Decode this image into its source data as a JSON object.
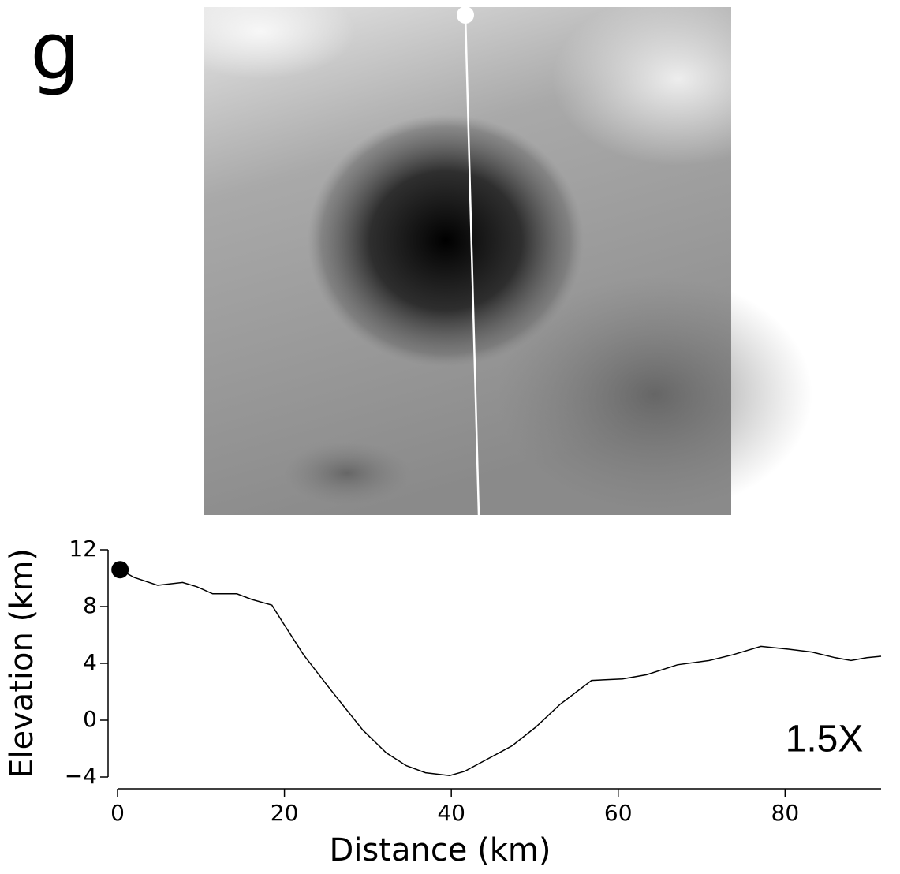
{
  "panel_label": "g",
  "chart_data": {
    "type": "line",
    "annotation": "1.5X",
    "x_label": "Distance (km)",
    "y_label": "Elevation (km)",
    "xlim": [
      0,
      91.5
    ],
    "xticks": [
      0,
      20,
      40,
      60,
      80
    ],
    "ylim": [
      -4,
      12
    ],
    "yticks": [
      {
        "value": -4,
        "label": "−4"
      },
      0,
      4,
      8,
      12
    ],
    "color": "#000000",
    "x": [
      0.3,
      2,
      4.8,
      7.8,
      9.5,
      11.4,
      14.3,
      16.1,
      18.5,
      19.9,
      22.3,
      25.6,
      29.4,
      32.2,
      34.6,
      36.9,
      39.8,
      41.6,
      43.5,
      47.3,
      50.1,
      53.0,
      56.8,
      60.5,
      63.4,
      67.1,
      70.9,
      73.7,
      77.1,
      80.4,
      83.2,
      86.0,
      87.9,
      89.8,
      91.5
    ],
    "values": [
      10.6,
      10.05,
      9.5,
      9.7,
      9.4,
      8.9,
      8.9,
      8.5,
      8.1,
      6.8,
      4.6,
      2.1,
      -0.7,
      -2.3,
      -3.2,
      -3.7,
      -3.9,
      -3.6,
      -3.0,
      -1.8,
      -0.5,
      1.1,
      2.8,
      2.9,
      3.2,
      3.9,
      4.2,
      4.6,
      5.2,
      5.0,
      4.8,
      4.4,
      4.2,
      4.4,
      4.5
    ],
    "start_marker": {
      "x": 0.3,
      "y": 10.6
    }
  }
}
